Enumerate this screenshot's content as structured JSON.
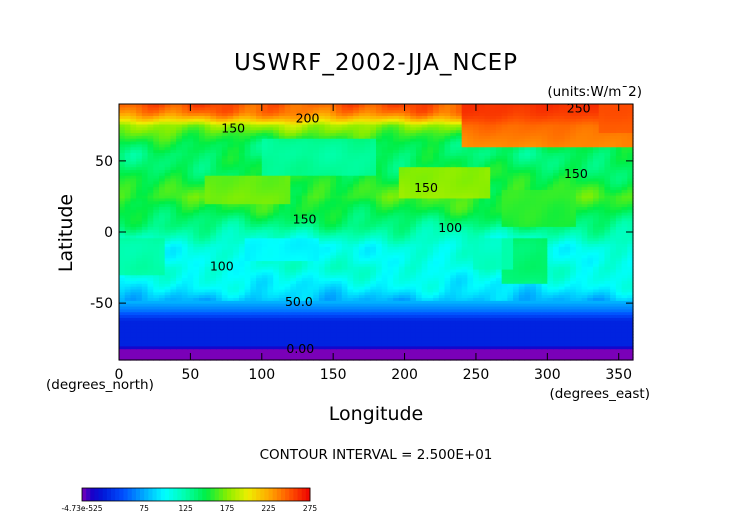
{
  "chart_data": {
    "type": "heatmap",
    "title": "USWRF_2002-JJA_NCEP",
    "units_label": "(units:W/m¯2)",
    "xlabel": "Longitude",
    "ylabel": "Latitude",
    "x_unit_note": "(degrees_east)",
    "y_unit_note": "(degrees_north)",
    "xlim": [
      0,
      360
    ],
    "ylim": [
      -90,
      90
    ],
    "x_ticks": [
      {
        "value": 0,
        "label": "0"
      },
      {
        "value": 50,
        "label": "50"
      },
      {
        "value": 100,
        "label": "100"
      },
      {
        "value": 150,
        "label": "150"
      },
      {
        "value": 200,
        "label": "200"
      },
      {
        "value": 250,
        "label": "250"
      },
      {
        "value": 300,
        "label": "300"
      },
      {
        "value": 350,
        "label": "350"
      }
    ],
    "y_ticks": [
      {
        "value": 50,
        "label": "50"
      },
      {
        "value": 0,
        "label": "0"
      },
      {
        "value": -50,
        "label": "-50"
      }
    ],
    "contour_interval": "CONTOUR INTERVAL = 2.500E+01",
    "value_range": [
      0,
      275
    ],
    "colorbar": {
      "ticks": [
        {
          "value": 0,
          "label": "-4.73e-525"
        },
        {
          "value": 75,
          "label": "75"
        },
        {
          "value": 125,
          "label": "125"
        },
        {
          "value": 175,
          "label": "175"
        },
        {
          "value": 225,
          "label": "225"
        },
        {
          "value": 275,
          "label": "275"
        }
      ]
    },
    "contour_labels": [
      {
        "text": "200",
        "lon": 132,
        "lat": 77
      },
      {
        "text": "150",
        "lon": 80,
        "lat": 70
      },
      {
        "text": "250",
        "lon": 322,
        "lat": 84
      },
      {
        "text": "150",
        "lon": 320,
        "lat": 38
      },
      {
        "text": "150",
        "lon": 215,
        "lat": 28
      },
      {
        "text": "150",
        "lon": 130,
        "lat": 6
      },
      {
        "text": "100",
        "lon": 232,
        "lat": 0
      },
      {
        "text": "100",
        "lon": 72,
        "lat": -27
      },
      {
        "text": "50.0",
        "lon": 126,
        "lat": -52
      },
      {
        "text": "0.00",
        "lon": 127,
        "lat": -85
      }
    ],
    "zonal_mean_profile": [
      {
        "lat": -90,
        "value": 0
      },
      {
        "lat": -82,
        "value": 0
      },
      {
        "lat": -80,
        "value": 30
      },
      {
        "lat": -62,
        "value": 30
      },
      {
        "lat": -55,
        "value": 60
      },
      {
        "lat": -48,
        "value": 80
      },
      {
        "lat": -40,
        "value": 95
      },
      {
        "lat": -25,
        "value": 110
      },
      {
        "lat": -10,
        "value": 105
      },
      {
        "lat": -3,
        "value": 118
      },
      {
        "lat": 5,
        "value": 135
      },
      {
        "lat": 15,
        "value": 150
      },
      {
        "lat": 25,
        "value": 160
      },
      {
        "lat": 35,
        "value": 150
      },
      {
        "lat": 45,
        "value": 145
      },
      {
        "lat": 55,
        "value": 140
      },
      {
        "lat": 62,
        "value": 145
      },
      {
        "lat": 68,
        "value": 160
      },
      {
        "lat": 75,
        "value": 180
      },
      {
        "lat": 80,
        "value": 220
      },
      {
        "lat": 84,
        "value": 240
      },
      {
        "lat": 90,
        "value": 250
      }
    ],
    "features": [
      {
        "lon_min": 240,
        "lon_max": 360,
        "lat_min": 60,
        "lat_max": 90,
        "value": 265
      },
      {
        "lon_min": 335,
        "lon_max": 360,
        "lat_min": 70,
        "lat_max": 90,
        "value": 250
      },
      {
        "lon_min": 195,
        "lon_max": 260,
        "lat_min": 25,
        "lat_max": 45,
        "value": 185
      },
      {
        "lon_min": 60,
        "lon_max": 120,
        "lat_min": 20,
        "lat_max": 40,
        "value": 175
      },
      {
        "lon_min": 270,
        "lon_max": 300,
        "lat_min": -35,
        "lat_max": -5,
        "value": 150
      },
      {
        "lon_min": 270,
        "lon_max": 320,
        "lat_min": 5,
        "lat_max": 30,
        "value": 160
      },
      {
        "lon_min": 100,
        "lon_max": 180,
        "lat_min": 40,
        "lat_max": 65,
        "value": 125
      },
      {
        "lon_min": 0,
        "lon_max": 30,
        "lat_min": -30,
        "lat_max": -5,
        "value": 130
      },
      {
        "lon_min": 250,
        "lon_max": 275,
        "lat_min": -25,
        "lat_max": -5,
        "value": 120
      },
      {
        "lon_min": 90,
        "lon_max": 140,
        "lat_min": -20,
        "lat_max": -5,
        "value": 95
      }
    ]
  }
}
